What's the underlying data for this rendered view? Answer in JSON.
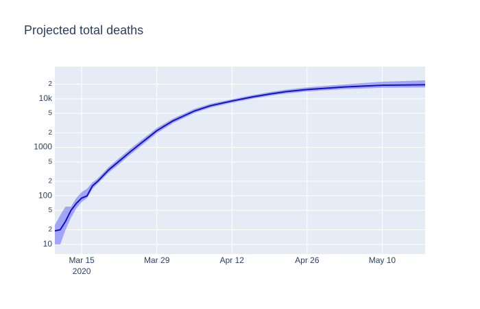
{
  "chart_data": {
    "type": "line",
    "title": "Projected total deaths",
    "x": [
      "2020-03-10",
      "2020-03-11",
      "2020-03-12",
      "2020-03-13",
      "2020-03-14",
      "2020-03-15",
      "2020-03-16",
      "2020-03-17",
      "2020-03-18",
      "2020-03-19",
      "2020-03-20",
      "2020-03-22",
      "2020-03-24",
      "2020-03-26",
      "2020-03-29",
      "2020-04-01",
      "2020-04-05",
      "2020-04-08",
      "2020-04-12",
      "2020-04-16",
      "2020-04-19",
      "2020-04-22",
      "2020-04-26",
      "2020-05-03",
      "2020-05-10",
      "2020-05-18"
    ],
    "series": [
      {
        "color": "#1010c8",
        "band_color": "rgba(0,0,255,0.3)",
        "values": [
          19,
          20,
          30,
          50,
          70,
          90,
          100,
          160,
          200,
          260,
          340,
          520,
          800,
          1200,
          2200,
          3500,
          5600,
          7200,
          9000,
          11000,
          12500,
          14000,
          15500,
          17500,
          19000,
          19500
        ],
        "lower": [
          10,
          10,
          20,
          35,
          55,
          75,
          90,
          140,
          180,
          230,
          300,
          450,
          700,
          1050,
          1950,
          3150,
          5100,
          6600,
          8300,
          10100,
          11500,
          12800,
          14200,
          15800,
          16900,
          17200
        ],
        "upper": [
          25,
          40,
          60,
          60,
          90,
          120,
          140,
          190,
          230,
          300,
          390,
          600,
          920,
          1380,
          2500,
          3900,
          6200,
          7900,
          9800,
          12000,
          13700,
          15400,
          17200,
          19800,
          22500,
          24000
        ]
      }
    ],
    "log_y": true,
    "xlim": [
      "2020-03-10",
      "2020-05-18"
    ],
    "xticks": [
      {
        "value": "2020-03-15",
        "label": "Mar 15"
      },
      {
        "value": "2020-03-29",
        "label": "Mar 29"
      },
      {
        "value": "2020-04-12",
        "label": "Apr 12"
      },
      {
        "value": "2020-04-26",
        "label": "Apr 26"
      },
      {
        "value": "2020-05-10",
        "label": "May 10"
      }
    ],
    "x_year_label": "2020",
    "ylim": [
      6.3,
      46000
    ],
    "yticks": [
      10,
      {
        "value": 20,
        "label": "2"
      },
      {
        "value": 50,
        "label": "5"
      },
      100,
      {
        "value": 200,
        "label": "2"
      },
      {
        "value": 500,
        "label": "5"
      },
      1000,
      {
        "value": 2000,
        "label": "2"
      },
      {
        "value": 5000,
        "label": "5"
      },
      {
        "value": 10000,
        "label": "10k"
      },
      {
        "value": 20000,
        "label": "2"
      }
    ],
    "grid": true
  }
}
